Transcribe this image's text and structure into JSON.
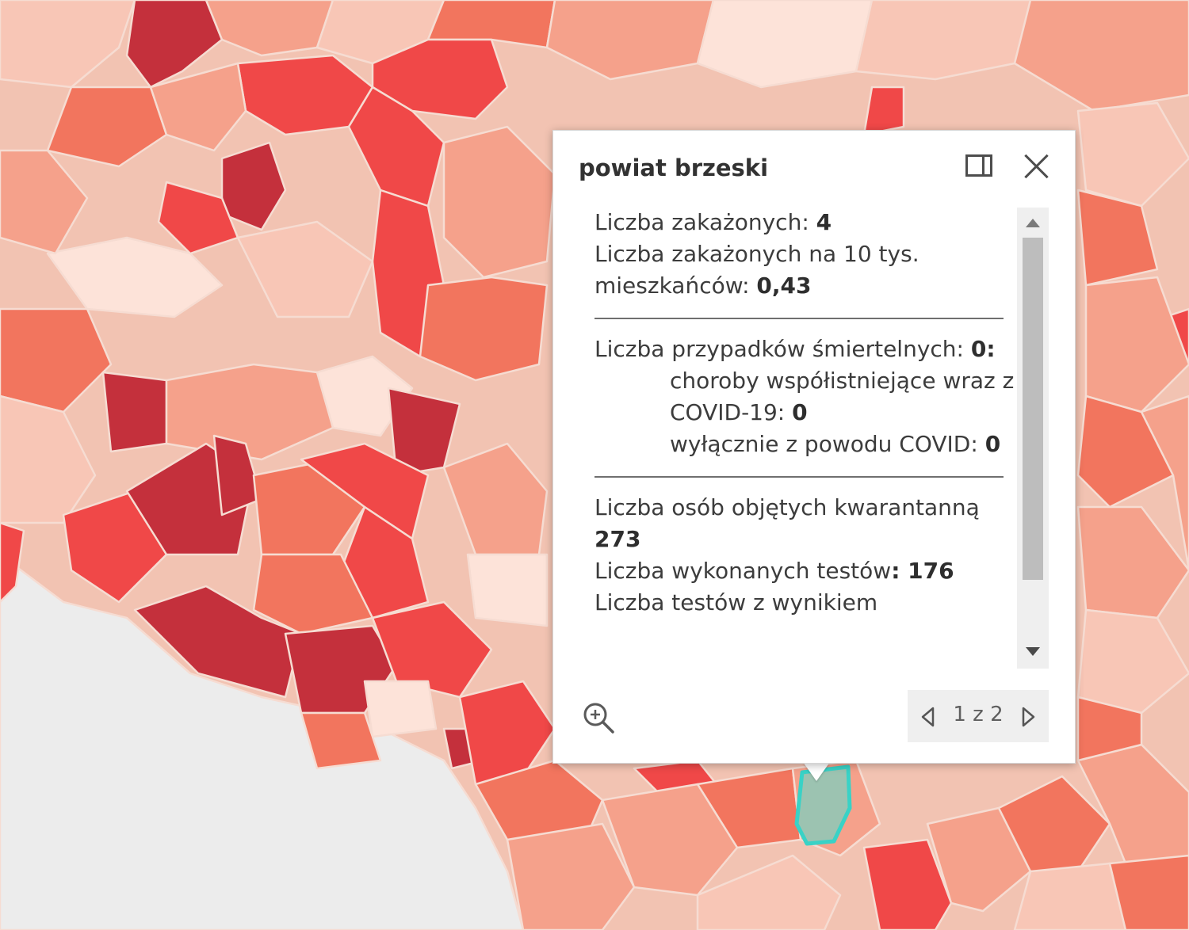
{
  "map": {
    "colors": {
      "darkest": "#c4303c",
      "dark": "#f04848",
      "medium": "#f2755e",
      "light": "#f5a18b",
      "pale": "#f8c6b6",
      "palest": "#fde3d9",
      "outside": "#ececec",
      "selected_fill": "#9cc3b1",
      "selected_stroke": "#39d2c6"
    }
  },
  "popup": {
    "title": "powiat brzeski",
    "section1": {
      "infected_label": "Liczba zakażonych: ",
      "infected_value": "4",
      "per10k_label": "Liczba zakażonych na 10 tys. mieszkańców: ",
      "per10k_value": "0,43"
    },
    "section2": {
      "deaths_label": "Liczba przypadków śmiertelnych: ",
      "deaths_value": "0:",
      "comorbid_label": "choroby współistniejące wraz z COVID-19: ",
      "comorbid_value": "0",
      "covid_only_label": "wyłącznie z powodu COVID: ",
      "covid_only_value": "0"
    },
    "section3": {
      "quarantine_label": "Liczba osób objętych kwarantanną ",
      "quarantine_value": "273",
      "tests_label": "Liczba wykonanych testów",
      "tests_value": ": 176",
      "positive_tests_label": "Liczba testów z wynikiem"
    },
    "pager": {
      "text": "1 z 2"
    },
    "icons": {
      "dock": "dock-icon",
      "close": "close-icon",
      "zoom": "zoom-in-icon",
      "prev": "chevron-left-icon",
      "next": "chevron-right-icon",
      "scroll_up": "scroll-up-arrow",
      "scroll_down": "scroll-down-arrow"
    }
  }
}
